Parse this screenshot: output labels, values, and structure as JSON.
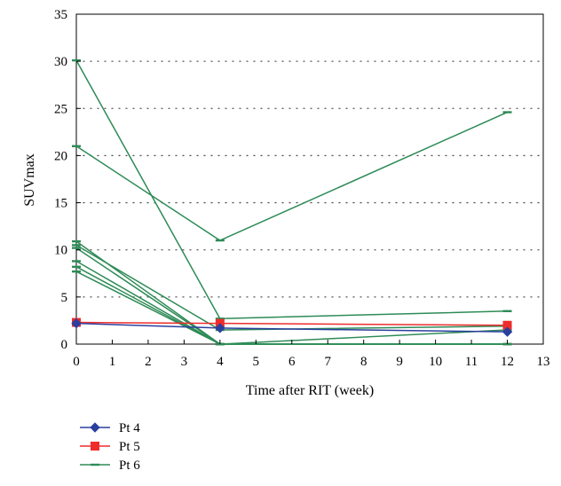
{
  "chart_data": {
    "type": "line",
    "title": "",
    "xlabel": "Time after RIT (week)",
    "ylabel": "SUVmax",
    "xlim": [
      0,
      13
    ],
    "ylim": [
      0,
      35
    ],
    "xticks": [
      0,
      1,
      2,
      3,
      4,
      5,
      6,
      7,
      8,
      9,
      10,
      11,
      12,
      13
    ],
    "yticks": [
      0,
      5,
      10,
      15,
      20,
      25,
      30,
      35
    ],
    "grid": "horizontal dotted",
    "legend_position": "bottom-left, below plot",
    "series": [
      {
        "name": "Pt 4",
        "color": "#2b3f9e",
        "marker": "diamond",
        "lines": [
          [
            [
              0,
              2.2
            ],
            [
              4,
              1.7
            ],
            [
              12,
              1.3
            ]
          ]
        ]
      },
      {
        "name": "Pt 5",
        "color": "#ee2c2c",
        "marker": "square",
        "lines": [
          [
            [
              0,
              2.3
            ],
            [
              4,
              2.2
            ],
            [
              12,
              2.0
            ]
          ]
        ]
      },
      {
        "name": "Pt 6",
        "color": "#2e8b57",
        "marker": "dash",
        "lines": [
          [
            [
              0,
              30.1
            ],
            [
              4,
              2.7
            ],
            [
              12,
              3.5
            ]
          ],
          [
            [
              0,
              21.0
            ],
            [
              4,
              11.0
            ],
            [
              12,
              24.6
            ]
          ],
          [
            [
              0,
              10.9
            ],
            [
              4,
              0.0
            ],
            [
              12,
              0.0
            ]
          ],
          [
            [
              0,
              10.5
            ],
            [
              4,
              1.5
            ],
            [
              12,
              1.9
            ]
          ],
          [
            [
              0,
              10.2
            ],
            [
              4,
              0.0
            ],
            [
              12,
              0.0
            ]
          ],
          [
            [
              0,
              8.8
            ],
            [
              4,
              0.0
            ],
            [
              12,
              0.0
            ]
          ],
          [
            [
              0,
              8.2
            ],
            [
              4,
              0.0
            ],
            [
              12,
              0.0
            ]
          ],
          [
            [
              0,
              7.7
            ],
            [
              4,
              0.0
            ],
            [
              12,
              1.5
            ]
          ]
        ]
      }
    ]
  }
}
